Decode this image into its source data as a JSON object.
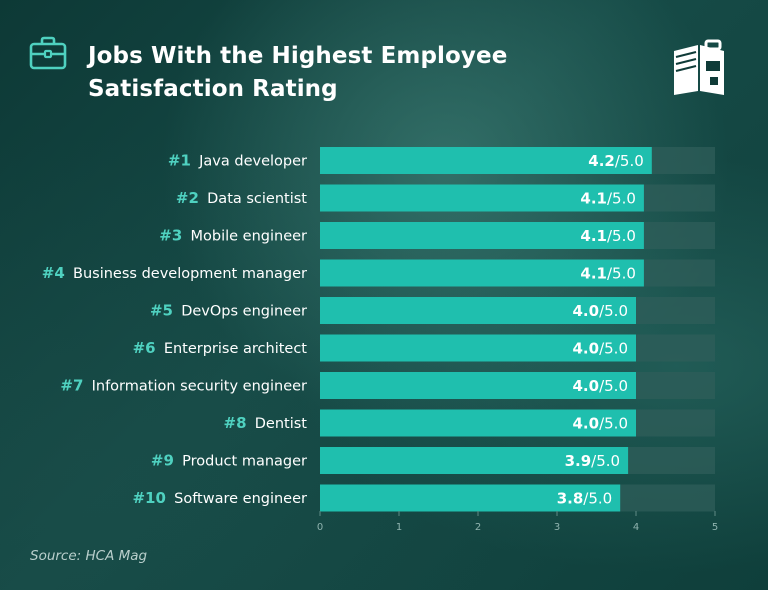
{
  "header": {
    "title_line1": "Jobs With the Highest Employee",
    "title_line2": "Satisfaction Rating",
    "briefcase_icon": "briefcase-icon",
    "logo_icon": "book-backpack-logo-icon"
  },
  "footer": {
    "source": "Source: HCA Mag"
  },
  "colors": {
    "bar": "#1fbfae",
    "track": "#2f5e5a",
    "rank": "#4fd1c0",
    "background": "#0f3b38"
  },
  "chart_data": {
    "type": "bar",
    "orientation": "horizontal",
    "categories": [
      "Java developer",
      "Data scientist",
      "Mobile engineer",
      "Business development manager",
      "DevOps engineer",
      "Enterprise architect",
      "Information security engineer",
      "Dentist",
      "Product manager",
      "Software engineer"
    ],
    "ranks": [
      "#1",
      "#2",
      "#3",
      "#4",
      "#5",
      "#6",
      "#7",
      "#8",
      "#9",
      "#10"
    ],
    "values": [
      4.2,
      4.1,
      4.1,
      4.1,
      4.0,
      4.0,
      4.0,
      4.0,
      3.9,
      3.8
    ],
    "value_labels": [
      "4.2",
      "4.1",
      "4.1",
      "4.1",
      "4.0",
      "4.0",
      "4.0",
      "4.0",
      "3.9",
      "3.8"
    ],
    "value_suffix": "/5.0",
    "xlim": [
      0,
      5
    ],
    "x_ticks": [
      "0",
      "1",
      "2",
      "3",
      "4",
      "5"
    ],
    "grid": false
  }
}
